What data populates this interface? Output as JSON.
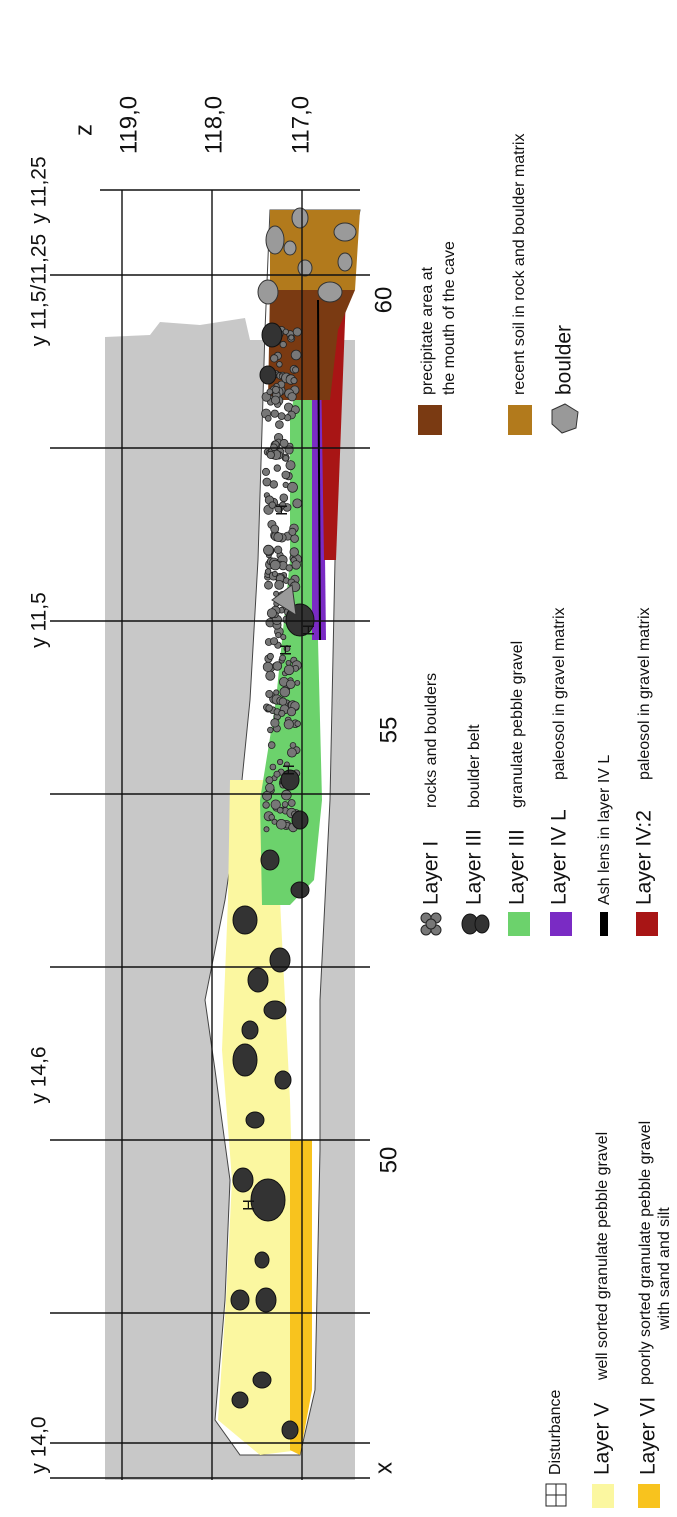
{
  "axis_labels": {
    "z": "z",
    "x": "x"
  },
  "elevations": [
    "119,0",
    "118,0",
    "117,0"
  ],
  "distances": [
    "60",
    "55",
    "50"
  ],
  "grid_labels": [
    "y 14,0",
    "y 14,6",
    "y 11,5",
    "y 11,5/11,25",
    "y 11,25"
  ],
  "disturbance_mark": "H",
  "legend": [
    {
      "label": "Layer I",
      "description": "rocks and boulders"
    },
    {
      "label": "Layer III",
      "description": "boulder belt"
    },
    {
      "label": "Layer III",
      "description": "granulate pebble gravel"
    },
    {
      "label": "Layer IV L",
      "description": "paleosol in gravel matrix"
    },
    {
      "description": "Ash lens in layer IV L"
    },
    {
      "label": "Layer IV:2",
      "description": "paleosol in gravel matrix"
    },
    {
      "description": [
        "precipitate area at",
        "the mouth of the cave"
      ]
    },
    {
      "description": "recent soil in rock and boulder matrix"
    },
    {
      "label": "boulder"
    },
    {
      "label": "Disturbance"
    },
    {
      "label": "Layer V",
      "description": "well sorted granulate pebble gravel"
    },
    {
      "label": "Layer VI",
      "description": [
        "poorly sorted granulate pebble gravel",
        "with sand and silt"
      ]
    }
  ]
}
